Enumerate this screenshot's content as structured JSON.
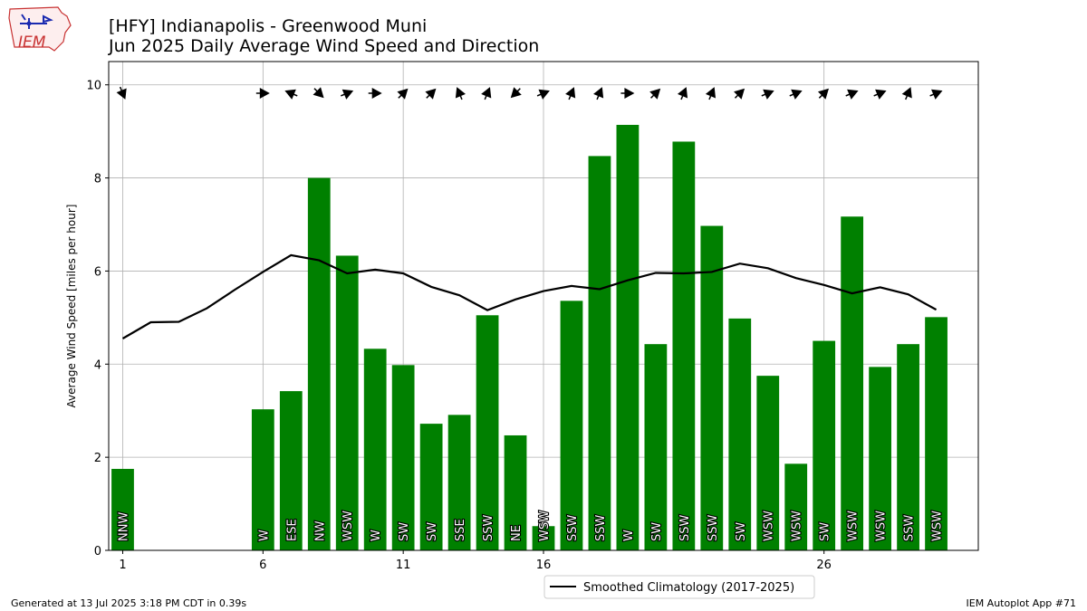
{
  "header": {
    "title_line1": "[HFY] Indianapolis - Greenwood Muni",
    "title_line2": "Jun 2025 Daily Average Wind Speed and Direction",
    "logo_text": "IEM"
  },
  "footer": {
    "left": "Generated at 13 Jul 2025 3:18 PM CDT in 0.39s",
    "right": "IEM Autoplot App #71"
  },
  "colors": {
    "bar": "#008000",
    "line": "#000000",
    "grid": "#b0b0b0",
    "logo": "#c83232"
  },
  "chart_data": {
    "type": "bar",
    "ylabel": "Average Wind Speed [miles per hour]",
    "xlim": [
      0.5,
      31.5
    ],
    "ylim": [
      0,
      10.5
    ],
    "xticks": [
      1,
      6,
      11,
      16,
      26
    ],
    "xtick_labels": [
      "1",
      "6",
      "11",
      "16",
      "26"
    ],
    "yticks": [
      0,
      2,
      4,
      6,
      8,
      10
    ],
    "ytick_labels": [
      "0",
      "2",
      "4",
      "6",
      "8",
      "10"
    ],
    "grid": true,
    "legend": {
      "position": "bottom-center",
      "label": "Smoothed Climatology (2017-2025)"
    },
    "days": [
      1,
      6,
      7,
      8,
      9,
      10,
      11,
      12,
      13,
      14,
      15,
      16,
      17,
      18,
      19,
      20,
      21,
      22,
      23,
      24,
      25,
      26,
      27,
      28,
      29,
      30
    ],
    "speed": [
      1.75,
      3.03,
      3.42,
      8.0,
      6.33,
      4.33,
      3.98,
      2.72,
      2.91,
      5.05,
      2.47,
      0.52,
      5.36,
      8.47,
      9.14,
      4.43,
      8.78,
      6.97,
      4.98,
      3.75,
      1.86,
      4.5,
      7.17,
      3.94,
      4.43,
      5.01
    ],
    "direction": [
      "NNW",
      "W",
      "ESE",
      "NW",
      "WSW",
      "W",
      "SW",
      "SW",
      "SSE",
      "SSW",
      "NE",
      "WSW",
      "SSW",
      "SSW",
      "W",
      "SW",
      "SSW",
      "SSW",
      "SW",
      "WSW",
      "WSW",
      "SW",
      "WSW",
      "WSW",
      "SSW",
      "WSW"
    ],
    "direction_deg": [
      337.5,
      270,
      112.5,
      315,
      247.5,
      270,
      225,
      225,
      157.5,
      202.5,
      45,
      247.5,
      202.5,
      202.5,
      270,
      225,
      202.5,
      202.5,
      225,
      247.5,
      247.5,
      225,
      247.5,
      247.5,
      202.5,
      247.5
    ],
    "climatology": {
      "name": "Smoothed Climatology (2017-2025)",
      "x": [
        1,
        2,
        3,
        4,
        5,
        6,
        7,
        8,
        9,
        10,
        11,
        12,
        13,
        14,
        15,
        16,
        17,
        18,
        19,
        20,
        21,
        22,
        23,
        24,
        25,
        26,
        27,
        28,
        29,
        30
      ],
      "y": [
        4.55,
        4.9,
        4.91,
        5.2,
        5.6,
        5.98,
        6.34,
        6.23,
        5.95,
        6.03,
        5.95,
        5.66,
        5.48,
        5.16,
        5.39,
        5.57,
        5.68,
        5.61,
        5.8,
        5.96,
        5.95,
        5.98,
        6.16,
        6.06,
        5.85,
        5.7,
        5.52,
        5.65,
        5.5,
        5.17
      ]
    }
  }
}
